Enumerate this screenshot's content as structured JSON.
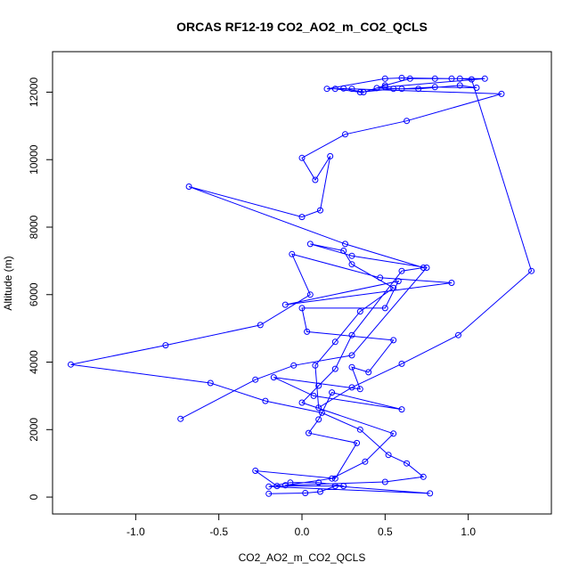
{
  "chart_data": {
    "type": "line",
    "title": "ORCAS RF12-19 CO2_AO2_m_CO2_QCLS",
    "xlabel": "CO2_AO2_m_CO2_QCLS",
    "ylabel": "Altitude (m)",
    "xlim": [
      -1.5,
      1.5
    ],
    "ylim": [
      -500,
      13200
    ],
    "xticks": [
      -1.0,
      -0.5,
      0.0,
      0.5,
      1.0
    ],
    "xtick_labels": [
      "-1.0",
      "-0.5",
      "0.0",
      "0.5",
      "1.0"
    ],
    "yticks": [
      0,
      2000,
      4000,
      6000,
      8000,
      10000,
      12000
    ],
    "ytick_labels": [
      "0",
      "2000",
      "4000",
      "6000",
      "8000",
      "10000",
      "12000"
    ],
    "grid": false,
    "series_color": "#0000ff",
    "series": [
      {
        "x": [
          -0.2,
          0.02,
          0.11,
          0.2,
          0.77,
          -0.2,
          -0.07,
          0.1,
          0.25,
          -0.15,
          -0.28,
          0.2,
          0.33,
          0.04,
          0.1,
          0.18,
          0.6,
          0.07,
          -0.17,
          0.35,
          0.3,
          0.4,
          0.55,
          0.03,
          0.0,
          0.5,
          0.58,
          -0.1,
          0.9,
          0.47,
          -0.06,
          0.05,
          -0.25,
          -0.82,
          -1.39,
          -0.55,
          -0.22,
          0.12,
          0.35,
          0.52,
          0.63,
          0.73,
          0.5,
          -0.1,
          0.18,
          0.38,
          0.55,
          0.0,
          0.1,
          0.2,
          0.3,
          0.6,
          0.73,
          0.26,
          -0.68,
          0.0,
          0.11,
          0.17,
          0.08,
          0.0,
          0.26,
          0.63,
          1.2,
          0.3,
          0.15,
          0.5,
          0.6,
          0.9,
          1.1,
          0.5,
          0.45,
          0.6,
          0.8,
          1.05,
          0.95,
          0.7,
          0.55,
          0.35,
          0.2,
          0.25,
          0.37,
          0.5,
          0.65,
          0.8,
          0.95,
          1.02,
          1.38,
          0.94,
          0.6,
          0.3,
          0.1,
          0.08,
          0.2,
          0.35,
          0.55,
          0.3,
          0.25,
          0.05,
          0.3,
          0.75,
          0.3,
          -0.05,
          -0.28,
          -0.73
        ],
        "y": [
          100,
          120,
          160,
          330,
          110,
          310,
          430,
          430,
          330,
          330,
          780,
          550,
          1600,
          1900,
          2300,
          3100,
          2600,
          3000,
          3550,
          3200,
          3850,
          3700,
          4650,
          4900,
          5600,
          5600,
          6400,
          5700,
          6350,
          6500,
          7200,
          6000,
          5100,
          4500,
          3930,
          3380,
          2850,
          2500,
          2000,
          1250,
          1000,
          600,
          450,
          350,
          550,
          1050,
          1880,
          2800,
          3300,
          3800,
          4800,
          6700,
          6800,
          7500,
          9200,
          8300,
          8500,
          10100,
          9400,
          10050,
          10750,
          11150,
          11950,
          12100,
          12100,
          12400,
          12420,
          12400,
          12400,
          12150,
          12120,
          12100,
          12150,
          12130,
          12200,
          12100,
          12100,
          12000,
          12100,
          12110,
          12000,
          12200,
          12400,
          12400,
          12400,
          12380,
          6700,
          4800,
          3950,
          3250,
          2650,
          3900,
          4600,
          5500,
          6200,
          6900,
          7300,
          7500,
          7150,
          6800,
          4200,
          3900,
          3480,
          2320
        ]
      }
    ]
  }
}
